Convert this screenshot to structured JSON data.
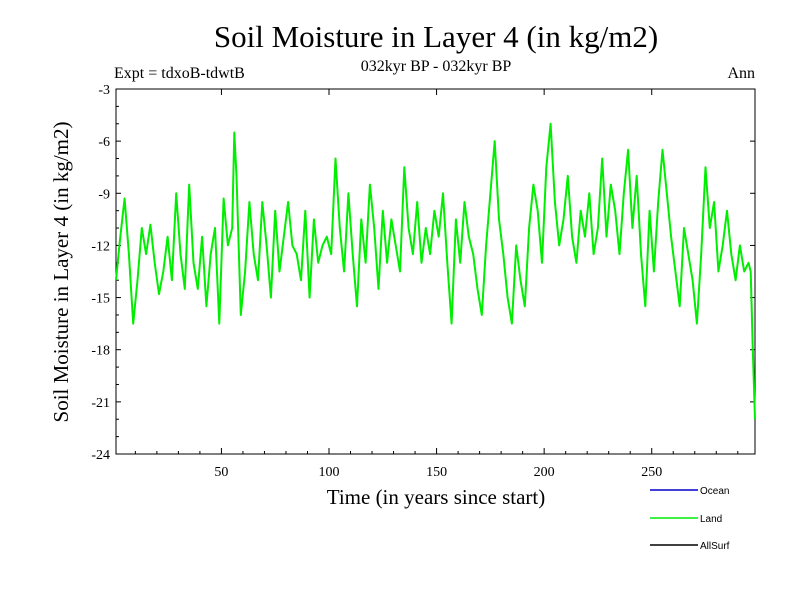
{
  "chart_data": {
    "type": "line",
    "title": "Soil Moisture in Layer 4 (in kg/m2)",
    "subtitle": "032kyr BP - 032kyr BP",
    "experiment": "Expt = tdxoB-tdwtB",
    "period": "Ann",
    "xlabel": "Time (in years since start)",
    "ylabel": "Soil Moisture in Layer 4 (in kg/m2)",
    "xlim": [
      1,
      298
    ],
    "ylim": [
      -24,
      -3
    ],
    "xticks": [
      50,
      100,
      150,
      200,
      250
    ],
    "yticks": [
      -3,
      -6,
      -9,
      -12,
      -15,
      -18,
      -21,
      -24
    ],
    "grid": false,
    "legend_position": "bottom-right",
    "series": [
      {
        "name": "Ocean",
        "color": "#0000cc",
        "values": []
      },
      {
        "name": "Land",
        "color": "#00ee00",
        "x": [
          1,
          3,
          5,
          7,
          9,
          11,
          13,
          15,
          17,
          19,
          21,
          23,
          25,
          27,
          29,
          31,
          33,
          35,
          37,
          39,
          41,
          43,
          45,
          47,
          49,
          51,
          53,
          55,
          56,
          57,
          59,
          61,
          63,
          65,
          67,
          69,
          71,
          73,
          75,
          77,
          79,
          81,
          83,
          85,
          87,
          89,
          91,
          93,
          95,
          97,
          99,
          101,
          103,
          105,
          107,
          109,
          111,
          113,
          115,
          117,
          119,
          121,
          123,
          125,
          127,
          129,
          131,
          133,
          135,
          137,
          139,
          141,
          143,
          145,
          147,
          149,
          151,
          153,
          155,
          157,
          159,
          161,
          163,
          165,
          167,
          169,
          171,
          173,
          175,
          177,
          179,
          181,
          183,
          185,
          187,
          189,
          191,
          193,
          195,
          197,
          199,
          201,
          203,
          205,
          207,
          209,
          211,
          213,
          215,
          217,
          219,
          221,
          223,
          225,
          227,
          229,
          231,
          233,
          235,
          237,
          239,
          241,
          243,
          245,
          247,
          249,
          251,
          253,
          255,
          257,
          259,
          261,
          263,
          265,
          267,
          269,
          271,
          273,
          275,
          277,
          279,
          281,
          283,
          285,
          287,
          289,
          291,
          293,
          295,
          296,
          297,
          298
        ],
        "values": [
          -14.0,
          -11.5,
          -9.3,
          -12.5,
          -16.5,
          -14.0,
          -11.0,
          -12.5,
          -10.8,
          -13.0,
          -14.8,
          -13.5,
          -11.5,
          -14.0,
          -9.0,
          -12.5,
          -14.5,
          -8.5,
          -13.0,
          -14.5,
          -11.5,
          -15.5,
          -12.5,
          -11.0,
          -16.5,
          -9.3,
          -12.0,
          -11.0,
          -5.5,
          -8.0,
          -16.0,
          -13.5,
          -9.5,
          -12.5,
          -14.0,
          -9.5,
          -12.0,
          -15.0,
          -10.0,
          -13.5,
          -11.5,
          -9.5,
          -12.0,
          -12.5,
          -14.0,
          -10.0,
          -15.0,
          -10.5,
          -13.0,
          -12.0,
          -11.5,
          -12.5,
          -7.0,
          -11.0,
          -13.5,
          -9.0,
          -12.5,
          -15.5,
          -10.5,
          -13.0,
          -8.5,
          -11.0,
          -14.5,
          -10.0,
          -13.0,
          -10.5,
          -12.0,
          -13.5,
          -7.5,
          -11.0,
          -12.5,
          -9.5,
          -13.0,
          -11.0,
          -12.5,
          -10.0,
          -11.5,
          -9.0,
          -13.0,
          -16.5,
          -10.5,
          -13.0,
          -9.5,
          -11.5,
          -12.5,
          -14.5,
          -16.0,
          -12.0,
          -9.0,
          -6.0,
          -10.5,
          -12.5,
          -15.0,
          -16.5,
          -12.0,
          -14.0,
          -15.5,
          -11.0,
          -8.5,
          -10.0,
          -13.0,
          -7.5,
          -5.0,
          -9.5,
          -12.0,
          -10.5,
          -8.0,
          -11.5,
          -13.0,
          -10.0,
          -11.5,
          -9.0,
          -12.5,
          -11.0,
          -7.0,
          -11.5,
          -8.5,
          -10.0,
          -12.5,
          -9.0,
          -6.5,
          -11.0,
          -8.0,
          -12.5,
          -15.5,
          -10.0,
          -13.5,
          -9.5,
          -6.5,
          -9.0,
          -11.5,
          -13.5,
          -15.5,
          -11.0,
          -12.5,
          -14.0,
          -16.5,
          -12.5,
          -7.5,
          -11.0,
          -9.5,
          -13.5,
          -12.0,
          -10.0,
          -12.5,
          -14.0,
          -12.0,
          -13.5,
          -13.0,
          -13.5,
          -18.0,
          -22.0
        ]
      },
      {
        "name": "AllSurf",
        "color": "#000000",
        "values": []
      }
    ]
  }
}
